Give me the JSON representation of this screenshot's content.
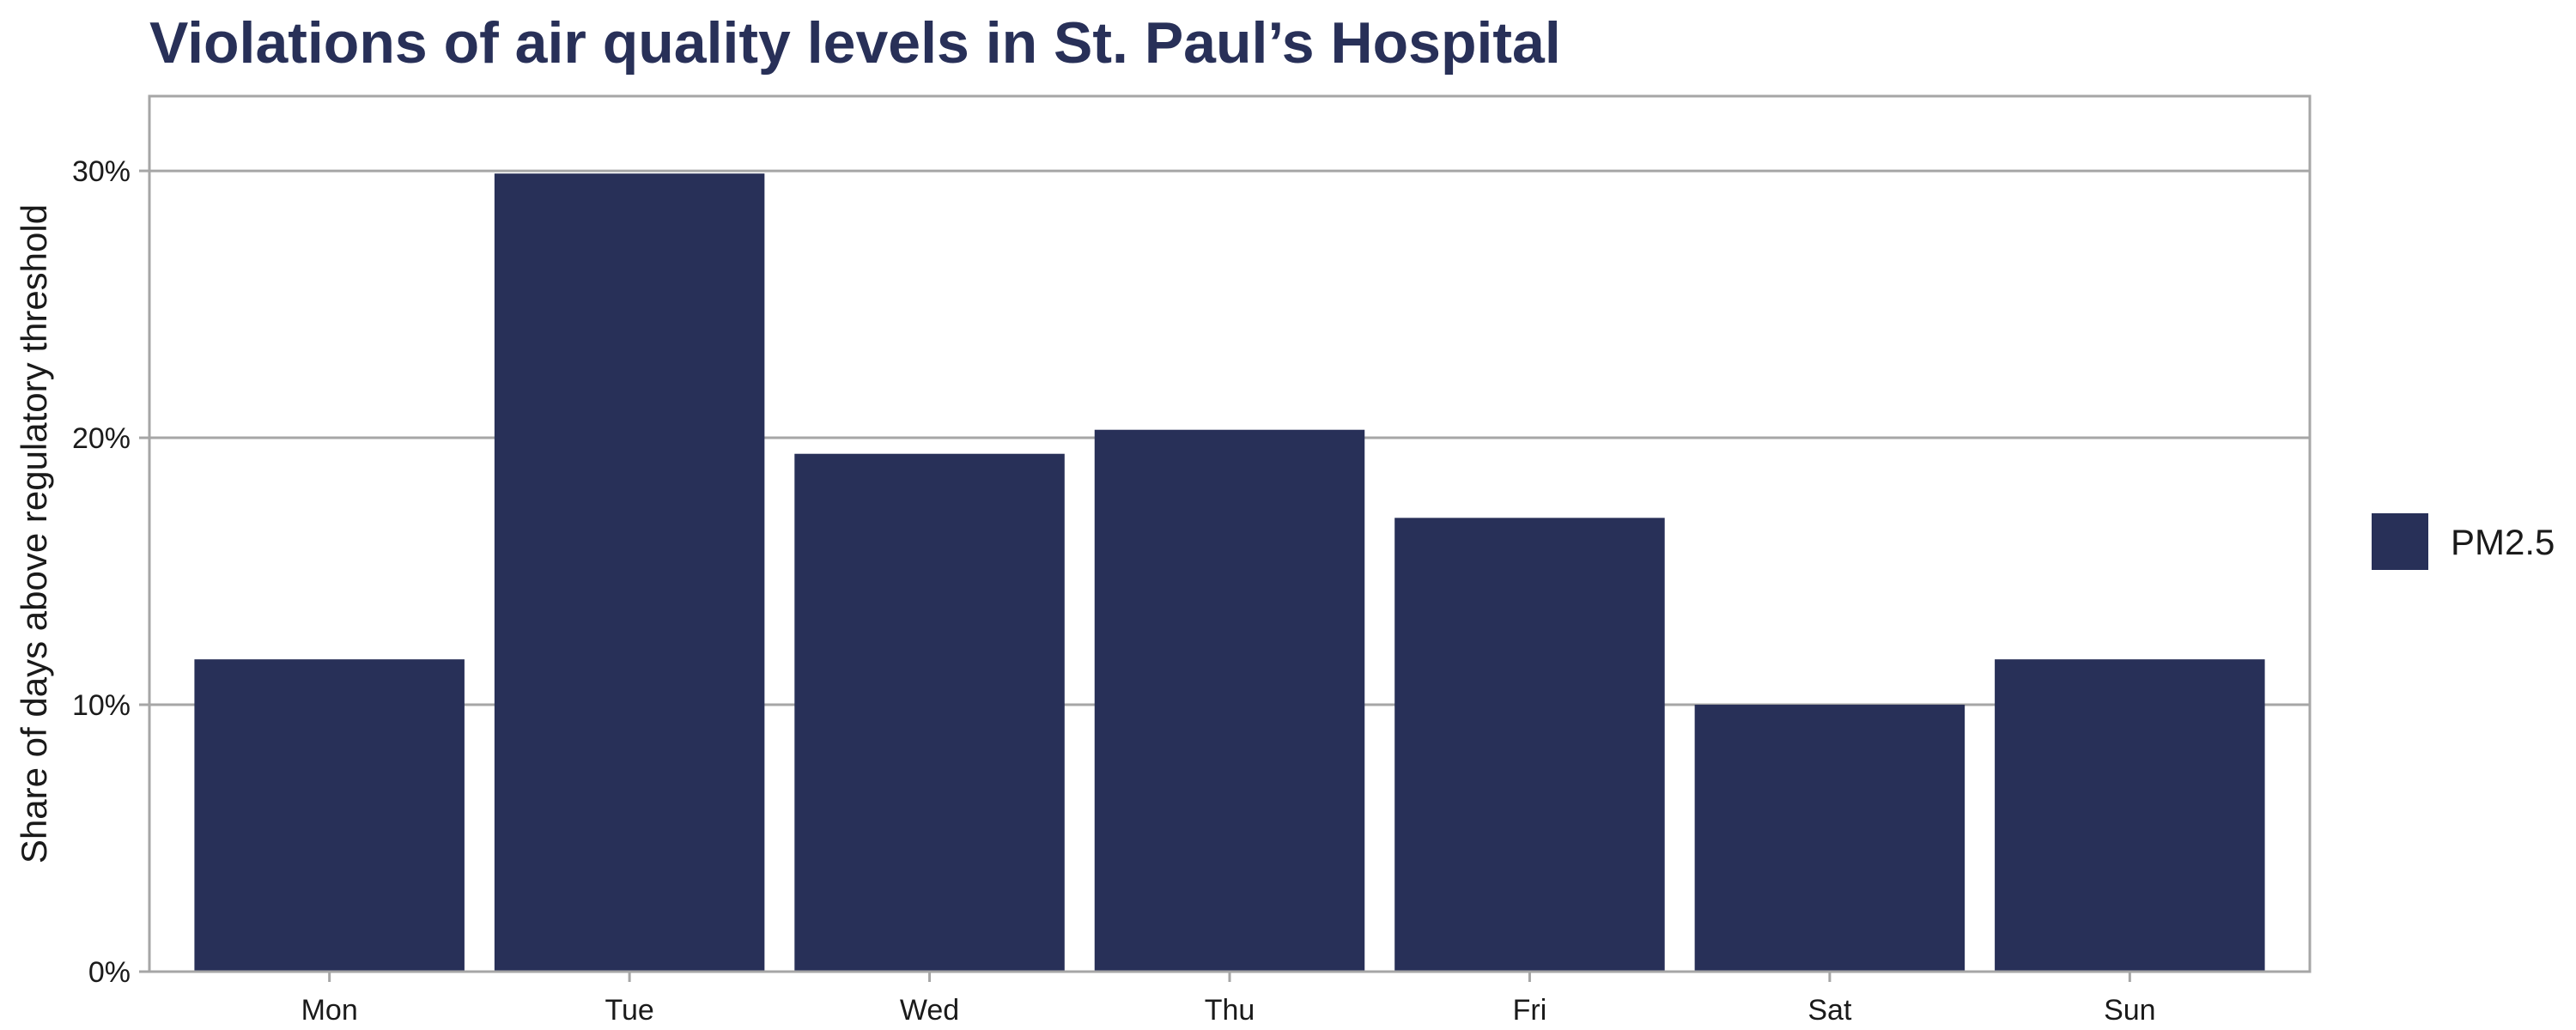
{
  "chart_data": {
    "type": "bar",
    "title": "Violations of air quality levels in St. Paul’s Hospital",
    "xlabel": "",
    "ylabel": "Share of days above regulatory threshold",
    "categories": [
      "Mon",
      "Tue",
      "Wed",
      "Thu",
      "Fri",
      "Sat",
      "Sun"
    ],
    "series": [
      {
        "name": "PM2.5",
        "values": [
          11.7,
          29.9,
          19.4,
          20.3,
          17.0,
          10.0,
          11.7
        ]
      }
    ],
    "ylim": [
      0,
      32.8
    ],
    "yticks": [
      0,
      10,
      20,
      30
    ],
    "ytick_labels": [
      "0%",
      "10%",
      "20%",
      "30%"
    ],
    "grid": "horizontal major",
    "legend_position": "right",
    "colors": {
      "bar": "#283058",
      "title": "#283058",
      "grid": "#a6a6a6",
      "panel_border": "#a6a6a6"
    }
  }
}
